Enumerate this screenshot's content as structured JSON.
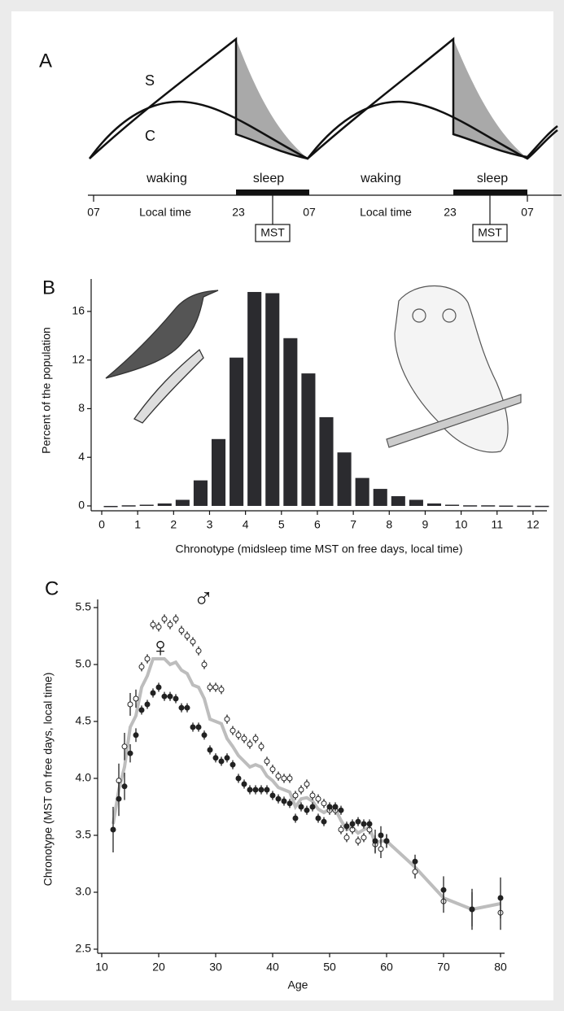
{
  "panel_a": {
    "label": "A",
    "curve_labels": [
      "S",
      "C"
    ],
    "phases": [
      "waking",
      "sleep",
      "waking",
      "sleep"
    ],
    "times": [
      "07",
      "23",
      "07",
      "23",
      "07"
    ],
    "axis_labels": [
      "Local time",
      "Local time"
    ],
    "markers": [
      "MST",
      "MST"
    ]
  },
  "chart_data": [
    {
      "type": "histogram",
      "panel_label": "B",
      "ylabel": "Percent of the population",
      "xlabel": "Chronotype  (midsleep time MST on free days, local time)",
      "bins": [
        0,
        0.5,
        1,
        1.5,
        2,
        2.5,
        3,
        3.5,
        4,
        4.5,
        5,
        5.5,
        6,
        6.5,
        7,
        7.5,
        8,
        8.5,
        9,
        9.5,
        10,
        10.5,
        11,
        11.5,
        12,
        12.5
      ],
      "values": [
        0,
        0.05,
        0.1,
        0.2,
        0.5,
        2.1,
        5.5,
        12.2,
        17.6,
        17.5,
        13.8,
        10.9,
        7.3,
        4.4,
        2.3,
        1.4,
        0.8,
        0.5,
        0.2,
        0.1,
        0.05,
        0.05,
        0.03,
        0.02,
        0.01
      ],
      "color": "#2b2b2f",
      "xlim": [
        0,
        12.5
      ],
      "xticks": [
        0,
        1,
        2,
        3,
        4,
        5,
        6,
        7,
        8,
        9,
        10,
        11,
        12
      ],
      "ylim": [
        0,
        18
      ],
      "yticks": [
        0,
        4,
        8,
        12,
        16
      ]
    },
    {
      "type": "scatter",
      "panel_label": "C",
      "ylabel": "Chronotype  (MST on free days, local time)",
      "xlabel": "Age",
      "x": [
        12,
        13,
        14,
        15,
        16,
        17,
        18,
        19,
        20,
        21,
        22,
        23,
        24,
        25,
        26,
        27,
        28,
        29,
        30,
        31,
        32,
        33,
        34,
        35,
        36,
        37,
        38,
        39,
        40,
        41,
        42,
        43,
        44,
        45,
        46,
        47,
        48,
        49,
        50,
        51,
        52,
        53,
        54,
        55,
        56,
        57,
        58,
        59,
        60,
        65,
        70,
        75,
        80
      ],
      "series": [
        {
          "name": "♂",
          "color": "#ffffff",
          "values": [
            null,
            3.98,
            4.28,
            4.65,
            4.7,
            4.98,
            5.05,
            5.35,
            5.33,
            5.4,
            5.35,
            5.4,
            5.3,
            5.25,
            5.2,
            5.12,
            5.0,
            4.8,
            4.8,
            4.78,
            4.52,
            4.42,
            4.38,
            4.35,
            4.3,
            4.35,
            4.28,
            4.15,
            4.08,
            4.02,
            4.0,
            4.0,
            3.85,
            3.9,
            3.95,
            3.85,
            3.82,
            3.78,
            3.72,
            3.72,
            3.55,
            3.48,
            3.55,
            3.45,
            3.48,
            3.55,
            3.42,
            3.38,
            3.45,
            3.18,
            2.92,
            2.85,
            2.82
          ],
          "errors": [
            null,
            0.15,
            0.12,
            0.1,
            0.08,
            0.04,
            0.04,
            0.04,
            0.04,
            0.04,
            0.04,
            0.04,
            0.04,
            0.04,
            0.04,
            0.04,
            0.04,
            0.04,
            0.04,
            0.04,
            0.04,
            0.04,
            0.04,
            0.04,
            0.04,
            0.04,
            0.04,
            0.04,
            0.04,
            0.04,
            0.04,
            0.04,
            0.04,
            0.04,
            0.04,
            0.04,
            0.04,
            0.04,
            0.04,
            0.04,
            0.04,
            0.04,
            0.04,
            0.04,
            0.04,
            0.04,
            0.08,
            0.08,
            0.06,
            0.06,
            0.1,
            0.15,
            0.15
          ]
        },
        {
          "name": "♀",
          "color": "#222222",
          "values": [
            3.55,
            3.82,
            3.93,
            4.22,
            4.38,
            4.6,
            4.65,
            4.75,
            4.8,
            4.72,
            4.72,
            4.7,
            4.62,
            4.62,
            4.45,
            4.45,
            4.38,
            4.25,
            4.18,
            4.15,
            4.18,
            4.12,
            4.0,
            3.95,
            3.9,
            3.9,
            3.9,
            3.9,
            3.85,
            3.82,
            3.8,
            3.78,
            3.65,
            3.75,
            3.72,
            3.75,
            3.65,
            3.62,
            3.75,
            3.75,
            3.72,
            3.58,
            3.6,
            3.62,
            3.6,
            3.6,
            3.45,
            3.5,
            3.45,
            3.27,
            3.02,
            2.85,
            2.95
          ],
          "errors": [
            0.2,
            0.15,
            0.12,
            0.08,
            0.06,
            0.04,
            0.04,
            0.04,
            0.04,
            0.04,
            0.04,
            0.04,
            0.04,
            0.04,
            0.04,
            0.04,
            0.04,
            0.04,
            0.04,
            0.04,
            0.04,
            0.04,
            0.04,
            0.04,
            0.04,
            0.04,
            0.04,
            0.04,
            0.04,
            0.04,
            0.04,
            0.04,
            0.04,
            0.04,
            0.04,
            0.04,
            0.04,
            0.04,
            0.04,
            0.04,
            0.04,
            0.04,
            0.04,
            0.04,
            0.04,
            0.04,
            0.1,
            0.08,
            0.06,
            0.06,
            0.12,
            0.18,
            0.18
          ]
        }
      ],
      "line": {
        "color": "#bdbdbd",
        "values": [
          3.6,
          3.9,
          4.1,
          4.45,
          4.55,
          4.8,
          4.9,
          5.05,
          5.05,
          5.05,
          5.0,
          5.02,
          4.95,
          4.92,
          4.82,
          4.8,
          4.7,
          4.52,
          4.5,
          4.48,
          4.35,
          4.28,
          4.2,
          4.15,
          4.1,
          4.12,
          4.1,
          4.02,
          3.98,
          3.92,
          3.9,
          3.88,
          3.75,
          3.82,
          3.83,
          3.8,
          3.73,
          3.7,
          3.73,
          3.73,
          3.63,
          3.55,
          3.57,
          3.52,
          3.55,
          3.57,
          3.43,
          3.45,
          3.45,
          3.22,
          2.95,
          2.85,
          2.9
        ]
      },
      "xlim": [
        10,
        80
      ],
      "xticks": [
        10,
        20,
        30,
        40,
        50,
        60,
        70,
        80
      ],
      "ylim": [
        2.5,
        5.5
      ],
      "yticks": [
        2.5,
        {
          "value": 3,
          "label": "3.0"
        },
        3.5,
        {
          "value": 4,
          "label": "4.0"
        },
        4.5,
        {
          "value": 5,
          "label": "5.0"
        },
        5.5
      ]
    }
  ]
}
